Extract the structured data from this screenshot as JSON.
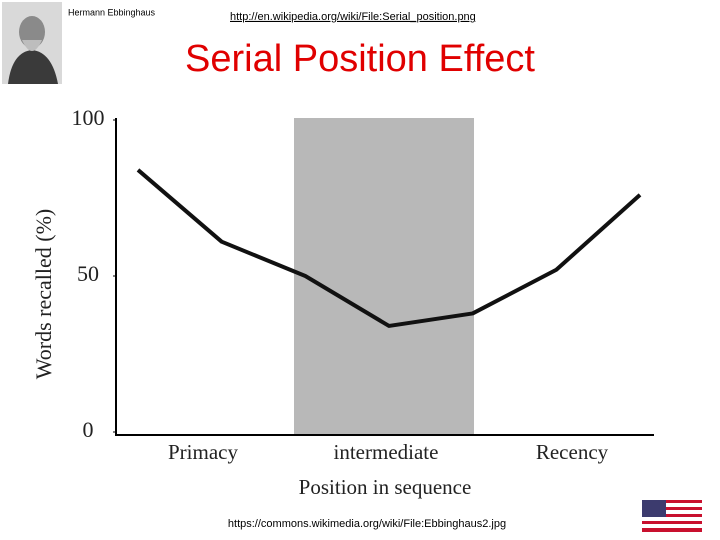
{
  "header": {
    "caption": "Hermann Ebbinghaus",
    "source_url": "http://en.wikipedia.org/wiki/File:Serial_position.png",
    "title": "Serial Position Effect"
  },
  "chart_data": {
    "type": "line",
    "categories": [
      null,
      null,
      null,
      null,
      null,
      null,
      null
    ],
    "values": [
      84,
      61,
      50,
      34,
      38,
      52,
      76
    ],
    "color": "#111111",
    "ylim": [
      0,
      100
    ],
    "yticks": [
      0,
      50,
      100
    ],
    "ylabel": "Words recalled (%)",
    "xlabel": "Position in sequence",
    "x_regions": [
      "Primacy",
      "intermediate",
      "Recency"
    ]
  },
  "footer": {
    "credit": "https://commons.wikimedia.org/wiki/File:Ebbinghaus2.jpg"
  }
}
